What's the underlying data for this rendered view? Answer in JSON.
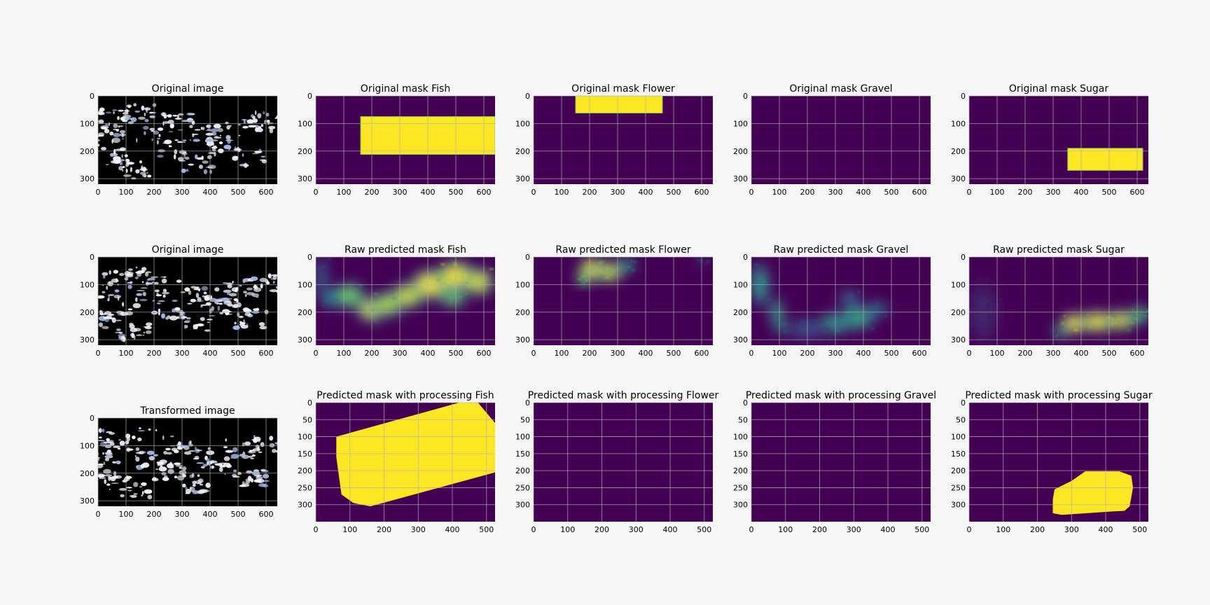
{
  "figure": {
    "rows": [
      [
        {
          "title": "Original image",
          "kind": "satellite",
          "xticks": [
            0,
            100,
            200,
            300,
            400,
            500,
            600
          ],
          "yticks": [
            0,
            100,
            200,
            300
          ],
          "xlim": [
            0,
            640
          ],
          "ylim": [
            320,
            0
          ]
        },
        {
          "title": "Original mask Fish",
          "kind": "rect",
          "box": [
            160,
            75,
            640,
            212
          ],
          "xticks": [
            0,
            100,
            200,
            300,
            400,
            500,
            600
          ],
          "yticks": [
            0,
            100,
            200,
            300
          ],
          "xlim": [
            0,
            640
          ],
          "ylim": [
            320,
            0
          ]
        },
        {
          "title": "Original mask Flower",
          "kind": "rect",
          "box": [
            150,
            0,
            460,
            62
          ],
          "xticks": [
            0,
            100,
            200,
            300,
            400,
            500,
            600
          ],
          "yticks": [
            0,
            100,
            200,
            300
          ],
          "xlim": [
            0,
            640
          ],
          "ylim": [
            320,
            0
          ]
        },
        {
          "title": "Original mask Gravel",
          "kind": "empty",
          "xticks": [
            0,
            100,
            200,
            300,
            400,
            500,
            600
          ],
          "yticks": [
            0,
            100,
            200,
            300
          ],
          "xlim": [
            0,
            640
          ],
          "ylim": [
            320,
            0
          ]
        },
        {
          "title": "Original mask Sugar",
          "kind": "rect",
          "box": [
            352,
            190,
            620,
            270
          ],
          "xticks": [
            0,
            100,
            200,
            300,
            400,
            500,
            600
          ],
          "yticks": [
            0,
            100,
            200,
            300
          ],
          "xlim": [
            0,
            640
          ],
          "ylim": [
            320,
            0
          ]
        }
      ],
      [
        {
          "title": "Original image",
          "kind": "satellite",
          "xticks": [
            0,
            100,
            200,
            300,
            400,
            500,
            600
          ],
          "yticks": [
            0,
            100,
            200,
            300
          ],
          "xlim": [
            0,
            640
          ],
          "ylim": [
            320,
            0
          ]
        },
        {
          "title": "Raw predicted mask Fish",
          "kind": "heat",
          "blobs": [
            [
              60,
              150,
              45,
              35,
              0.5
            ],
            [
              120,
              140,
              55,
              45,
              0.8
            ],
            [
              200,
              190,
              55,
              45,
              0.95
            ],
            [
              260,
              170,
              60,
              45,
              0.9
            ],
            [
              330,
              140,
              60,
              45,
              0.95
            ],
            [
              410,
              100,
              70,
              55,
              1.0
            ],
            [
              500,
              70,
              70,
              55,
              1.0
            ],
            [
              580,
              90,
              55,
              50,
              0.95
            ],
            [
              490,
              150,
              50,
              30,
              0.8
            ],
            [
              20,
              80,
              25,
              90,
              0.3
            ]
          ],
          "xticks": [
            0,
            100,
            200,
            300,
            400,
            500,
            600
          ],
          "yticks": [
            0,
            100,
            200,
            300
          ],
          "xlim": [
            0,
            640
          ],
          "ylim": [
            320,
            0
          ]
        },
        {
          "title": "Raw predicted mask Flower",
          "kind": "heat",
          "blobs": [
            [
              210,
              45,
              50,
              40,
              1.0
            ],
            [
              270,
              55,
              50,
              35,
              0.95
            ],
            [
              180,
              80,
              30,
              25,
              0.8
            ],
            [
              330,
              30,
              35,
              25,
              0.6
            ],
            [
              600,
              15,
              25,
              12,
              0.25
            ]
          ],
          "xticks": [
            0,
            100,
            200,
            300,
            400,
            500,
            600
          ],
          "yticks": [
            0,
            100,
            200,
            300
          ],
          "xlim": [
            0,
            640
          ],
          "ylim": [
            320,
            0
          ]
        },
        {
          "title": "Raw predicted mask Gravel",
          "kind": "heat",
          "blobs": [
            [
              30,
              100,
              35,
              80,
              0.55
            ],
            [
              90,
              200,
              25,
              50,
              0.6
            ],
            [
              100,
              250,
              20,
              30,
              0.55
            ],
            [
              300,
              240,
              60,
              40,
              0.55
            ],
            [
              380,
              220,
              60,
              45,
              0.6
            ],
            [
              450,
              190,
              40,
              30,
              0.4
            ],
            [
              350,
              150,
              40,
              30,
              0.35
            ],
            [
              200,
              260,
              80,
              40,
              0.25
            ]
          ],
          "xticks": [
            0,
            100,
            200,
            300,
            400,
            500,
            600
          ],
          "yticks": [
            0,
            100,
            200,
            300
          ],
          "xlim": [
            0,
            640
          ],
          "ylim": [
            320,
            0
          ]
        },
        {
          "title": "Raw predicted mask Sugar",
          "kind": "heat",
          "blobs": [
            [
              380,
              240,
              55,
              35,
              1.0
            ],
            [
              460,
              235,
              60,
              38,
              1.0
            ],
            [
              540,
              230,
              55,
              35,
              0.95
            ],
            [
              610,
              210,
              40,
              30,
              0.75
            ],
            [
              330,
              270,
              30,
              25,
              0.6
            ],
            [
              50,
              200,
              60,
              120,
              0.12
            ]
          ],
          "xticks": [
            0,
            100,
            200,
            300,
            400,
            500,
            600
          ],
          "yticks": [
            0,
            100,
            200,
            300
          ],
          "xlim": [
            0,
            640
          ],
          "ylim": [
            320,
            0
          ]
        }
      ],
      [
        {
          "title": "Transformed image",
          "kind": "satellite",
          "xticks": [
            0,
            100,
            200,
            300,
            400,
            500,
            600
          ],
          "yticks": [
            0,
            100,
            200,
            300
          ],
          "xlim": [
            0,
            640
          ],
          "ylim": [
            320,
            0
          ]
        },
        {
          "title": "Predicted mask with processing Fish",
          "kind": "poly",
          "polygon": [
            [
              60,
              100
            ],
            [
              420,
              0
            ],
            [
              475,
              0
            ],
            [
              525,
              60
            ],
            [
              525,
              205
            ],
            [
              160,
              305
            ],
            [
              110,
              295
            ],
            [
              75,
              270
            ],
            [
              60,
              160
            ]
          ],
          "xticks": [
            0,
            100,
            200,
            300,
            400,
            500
          ],
          "yticks": [
            0,
            50,
            100,
            150,
            200,
            250,
            300
          ],
          "xlim": [
            0,
            525
          ],
          "ylim": [
            350,
            0
          ]
        },
        {
          "title": "Predicted mask with processing Flower",
          "kind": "empty",
          "xticks": [
            0,
            100,
            200,
            300,
            400,
            500
          ],
          "yticks": [
            0,
            50,
            100,
            150,
            200,
            250,
            300
          ],
          "xlim": [
            0,
            525
          ],
          "ylim": [
            350,
            0
          ]
        },
        {
          "title": "Predicted mask with processing Gravel",
          "kind": "empty",
          "xticks": [
            0,
            100,
            200,
            300,
            400,
            500
          ],
          "yticks": [
            0,
            50,
            100,
            150,
            200,
            250,
            300
          ],
          "xlim": [
            0,
            525
          ],
          "ylim": [
            350,
            0
          ]
        },
        {
          "title": "Predicted mask with processing Sugar",
          "kind": "poly",
          "polygon": [
            [
              250,
              255
            ],
            [
              300,
              230
            ],
            [
              340,
              202
            ],
            [
              440,
              202
            ],
            [
              475,
              215
            ],
            [
              480,
              250
            ],
            [
              470,
              305
            ],
            [
              455,
              318
            ],
            [
              420,
              320
            ],
            [
              270,
              330
            ],
            [
              245,
              325
            ],
            [
              245,
              285
            ]
          ],
          "xticks": [
            0,
            100,
            200,
            300,
            400,
            500
          ],
          "yticks": [
            0,
            50,
            100,
            150,
            200,
            250,
            300
          ],
          "xlim": [
            0,
            525
          ],
          "ylim": [
            350,
            0
          ]
        }
      ]
    ]
  },
  "chart_data": {
    "type": "heatmap",
    "layout": "3x5 grid of image panels",
    "mask_colors": {
      "background": "#440154",
      "foreground": "#fde725"
    },
    "panels": [
      {
        "title": "Original image",
        "content": "satellite cloud image"
      },
      {
        "title": "Original mask Fish",
        "rect_x": [
          160,
          640
        ],
        "rect_y": [
          75,
          212
        ]
      },
      {
        "title": "Original mask Flower",
        "rect_x": [
          150,
          460
        ],
        "rect_y": [
          0,
          62
        ]
      },
      {
        "title": "Original mask Gravel",
        "content": "empty"
      },
      {
        "title": "Original mask Sugar",
        "rect_x": [
          352,
          620
        ],
        "rect_y": [
          190,
          270
        ]
      },
      {
        "title": "Raw predicted mask Fish",
        "content": "probability heatmap"
      },
      {
        "title": "Raw predicted mask Flower",
        "content": "probability heatmap"
      },
      {
        "title": "Raw predicted mask Gravel",
        "content": "probability heatmap"
      },
      {
        "title": "Raw predicted mask Sugar",
        "content": "probability heatmap"
      },
      {
        "title": "Transformed image",
        "content": "satellite cloud image"
      },
      {
        "title": "Predicted mask with processing Fish",
        "content": "polygon mask"
      },
      {
        "title": "Predicted mask with processing Flower",
        "content": "empty"
      },
      {
        "title": "Predicted mask with processing Gravel",
        "content": "empty"
      },
      {
        "title": "Predicted mask with processing Sugar",
        "content": "polygon mask"
      }
    ]
  }
}
